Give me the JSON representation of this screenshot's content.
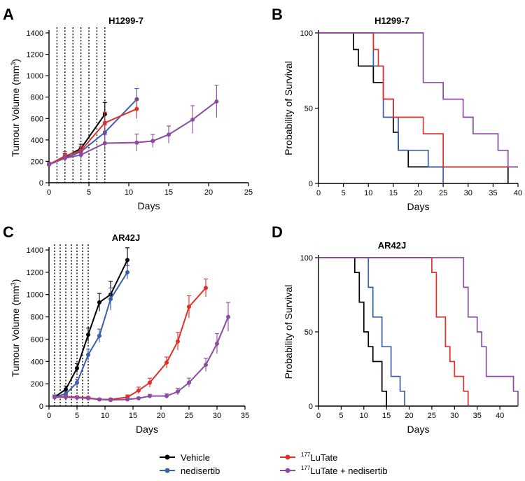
{
  "colors": {
    "vehicle": "#000000",
    "nedisertib": "#3a5fae",
    "lutate": "#e0302a",
    "combo": "#8e4aa3"
  },
  "legend": {
    "vehicle": "Vehicle",
    "nedisertib": "nedisertib",
    "lutate_sup": "177",
    "lutate": "LuTate",
    "combo_sup": "177",
    "combo": "LuTate + nedisertib"
  },
  "chart_data": [
    {
      "panel": "A",
      "type": "line",
      "title": "H1299-7",
      "xlabel": "Days",
      "ylabel": "Tumour Volume (mm",
      "ylabel_sup": "3",
      "ylabel_end": ")",
      "xlim": [
        0,
        25
      ],
      "ylim": [
        0,
        1400
      ],
      "xticks": [
        0,
        5,
        10,
        15,
        20,
        25
      ],
      "yticks": [
        0,
        200,
        400,
        600,
        800,
        1000,
        1200,
        1400
      ],
      "dosing_days": [
        1,
        2,
        3,
        4,
        5,
        6,
        7
      ],
      "series": [
        {
          "key": "vehicle",
          "x": [
            0,
            2,
            4,
            7
          ],
          "y": [
            170,
            240,
            320,
            640
          ],
          "err": [
            20,
            30,
            40,
            110
          ]
        },
        {
          "key": "nedisertib",
          "x": [
            0,
            2,
            4,
            7,
            11
          ],
          "y": [
            170,
            230,
            290,
            470,
            780
          ],
          "err": [
            20,
            30,
            40,
            70,
            100
          ]
        },
        {
          "key": "lutate",
          "x": [
            0,
            2,
            4,
            7,
            11
          ],
          "y": [
            170,
            250,
            300,
            560,
            690
          ],
          "err": [
            20,
            40,
            40,
            100,
            90
          ]
        },
        {
          "key": "combo",
          "x": [
            0,
            2,
            4,
            7,
            11,
            13,
            15,
            18,
            21
          ],
          "y": [
            170,
            230,
            260,
            370,
            375,
            390,
            450,
            590,
            760
          ],
          "err": [
            20,
            30,
            40,
            80,
            80,
            60,
            80,
            130,
            150
          ]
        }
      ]
    },
    {
      "panel": "B",
      "type": "line",
      "title": "H1299-7",
      "xlabel": "Days",
      "ylabel": "Probability of Survival",
      "xlim": [
        0,
        40
      ],
      "ylim": [
        0,
        100
      ],
      "xticks": [
        0,
        5,
        10,
        15,
        20,
        25,
        30,
        35,
        40
      ],
      "yticks": [
        0,
        50,
        100
      ],
      "series": [
        {
          "key": "vehicle",
          "x": [
            0,
            7,
            8,
            11,
            13,
            15,
            16,
            18,
            38
          ],
          "y": [
            100,
            89,
            78,
            67,
            56,
            34,
            22,
            11,
            0
          ]
        },
        {
          "key": "nedisertib",
          "x": [
            0,
            11,
            13,
            16,
            22,
            25
          ],
          "y": [
            100,
            78,
            44,
            22,
            11,
            0
          ]
        },
        {
          "key": "lutate",
          "x": [
            0,
            11,
            12,
            13,
            15,
            21,
            25,
            40
          ],
          "y": [
            100,
            89,
            78,
            56,
            44,
            33,
            11,
            11
          ]
        },
        {
          "key": "combo",
          "x": [
            0,
            21,
            25,
            29,
            31,
            36,
            38,
            40
          ],
          "y": [
            100,
            67,
            56,
            44,
            33,
            22,
            11,
            11
          ]
        }
      ]
    },
    {
      "panel": "C",
      "type": "line",
      "title": "AR42J",
      "xlabel": "Days",
      "ylabel": "Tumour Volume (mm",
      "ylabel_sup": "3",
      "ylabel_end": ")",
      "xlim": [
        0,
        35
      ],
      "ylim": [
        0,
        1400
      ],
      "xticks": [
        0,
        5,
        10,
        15,
        20,
        25,
        30,
        35
      ],
      "yticks": [
        0,
        200,
        400,
        600,
        800,
        1000,
        1200,
        1400
      ],
      "dosing_days": [
        1,
        2,
        3,
        4,
        5,
        6,
        7
      ],
      "series": [
        {
          "key": "vehicle",
          "x": [
            1,
            3,
            5,
            7,
            9,
            11,
            14
          ],
          "y": [
            80,
            150,
            340,
            640,
            930,
            1000,
            1310
          ],
          "err": [
            20,
            30,
            40,
            60,
            80,
            120,
            110
          ]
        },
        {
          "key": "nedisertib",
          "x": [
            1,
            3,
            5,
            7,
            9,
            11,
            14
          ],
          "y": [
            80,
            110,
            210,
            460,
            630,
            960,
            1200
          ],
          "err": [
            20,
            20,
            30,
            50,
            60,
            100,
            60
          ]
        },
        {
          "key": "lutate",
          "x": [
            1,
            3,
            5,
            7,
            9,
            11,
            14,
            16,
            18,
            21,
            23,
            25,
            28
          ],
          "y": [
            80,
            85,
            80,
            75,
            60,
            60,
            80,
            140,
            210,
            390,
            580,
            890,
            1060
          ],
          "err": [
            10,
            10,
            10,
            10,
            10,
            10,
            20,
            30,
            40,
            50,
            80,
            100,
            80
          ]
        },
        {
          "key": "combo",
          "x": [
            1,
            3,
            5,
            7,
            9,
            11,
            14,
            16,
            18,
            21,
            23,
            25,
            28,
            30,
            32
          ],
          "y": [
            80,
            80,
            75,
            70,
            60,
            55,
            60,
            70,
            90,
            90,
            130,
            210,
            370,
            560,
            800
          ],
          "err": [
            10,
            10,
            10,
            10,
            10,
            10,
            10,
            10,
            15,
            20,
            30,
            40,
            60,
            90,
            130
          ]
        }
      ]
    },
    {
      "panel": "D",
      "type": "line",
      "title": "AR42J",
      "xlabel": "Days",
      "ylabel": "Probability of Survival",
      "xlim": [
        0,
        44
      ],
      "ylim": [
        0,
        100
      ],
      "xticks": [
        0,
        5,
        10,
        15,
        20,
        25,
        30,
        35,
        40
      ],
      "yticks": [
        0,
        50,
        100
      ],
      "series": [
        {
          "key": "vehicle",
          "x": [
            0,
            8,
            9,
            10,
            11,
            12,
            14,
            15
          ],
          "y": [
            100,
            90,
            70,
            50,
            40,
            30,
            10,
            0
          ]
        },
        {
          "key": "nedisertib",
          "x": [
            0,
            11,
            12,
            14,
            16,
            18,
            19
          ],
          "y": [
            100,
            80,
            60,
            40,
            20,
            10,
            0
          ]
        },
        {
          "key": "lutate",
          "x": [
            0,
            25,
            26,
            28,
            29,
            30,
            32,
            33
          ],
          "y": [
            100,
            90,
            60,
            40,
            30,
            20,
            10,
            0
          ]
        },
        {
          "key": "combo",
          "x": [
            0,
            32,
            33,
            35,
            36,
            37,
            43,
            44
          ],
          "y": [
            100,
            80,
            60,
            50,
            40,
            20,
            10,
            0
          ]
        }
      ]
    }
  ]
}
